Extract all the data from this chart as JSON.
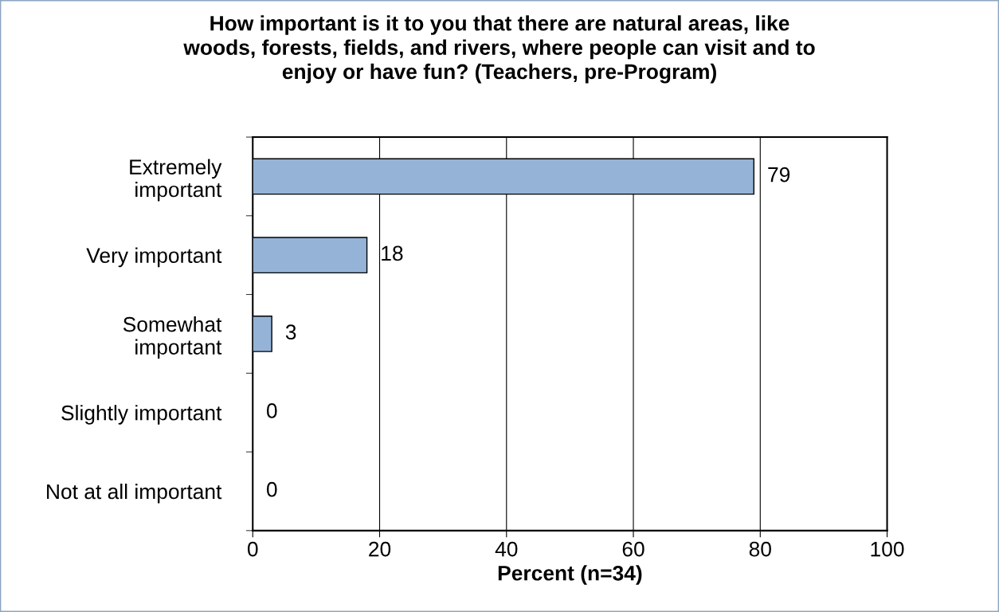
{
  "chart_data": {
    "type": "bar",
    "orientation": "horizontal",
    "title": "How important is it to you that there are natural areas, like\nwoods, forests, fields, and rivers, where people can visit and to\nenjoy or have fun? (Teachers, pre-Program)",
    "xlabel": "Percent (n=34)",
    "categories": [
      "Extremely\nimportant",
      "Very important",
      "Somewhat\nimportant",
      "Slightly important",
      "Not at all important"
    ],
    "values": [
      79,
      18,
      3,
      0,
      0
    ],
    "color": "#95b3d7",
    "xlim": [
      0,
      100
    ],
    "xticks": [
      0,
      20,
      40,
      60,
      80,
      100
    ],
    "grid": "x",
    "data_labels": true,
    "legend": false
  }
}
